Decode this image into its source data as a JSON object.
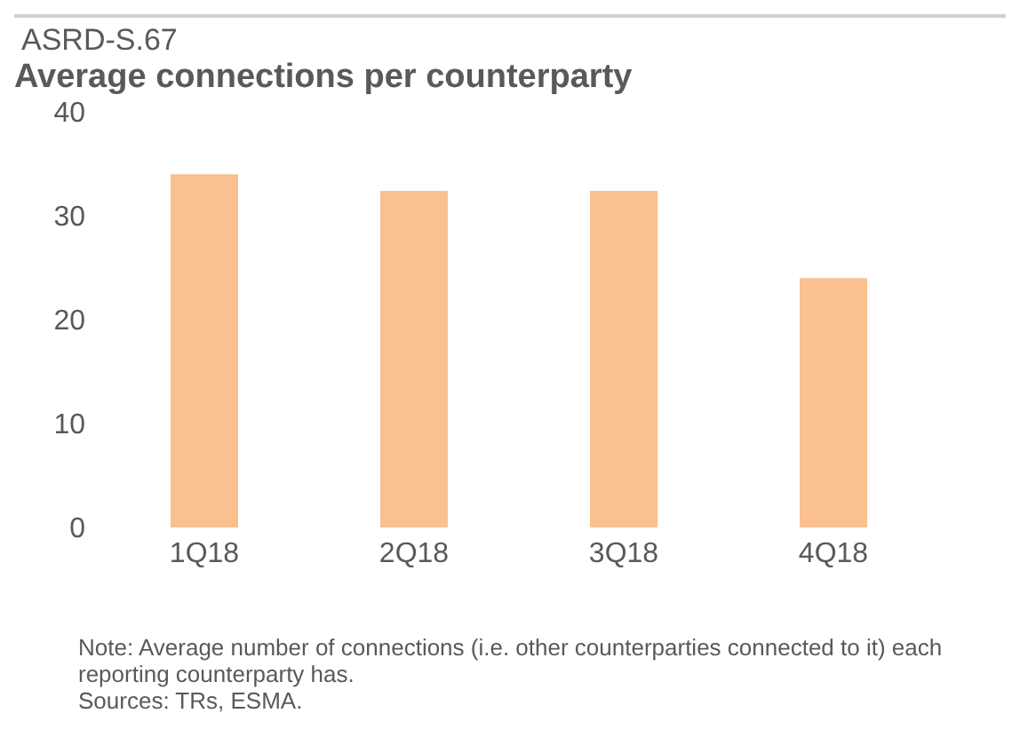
{
  "chart_data": {
    "type": "bar",
    "subtitle": "ASRD-S.67",
    "title": "Average connections per counterparty",
    "categories": [
      "1Q18",
      "2Q18",
      "3Q18",
      "4Q18"
    ],
    "values": [
      34,
      32.4,
      32.4,
      24
    ],
    "color": "#f9c090",
    "ylim": [
      0,
      40
    ],
    "yticks": [
      0,
      10,
      20,
      30,
      40
    ],
    "grid": false,
    "legend": false,
    "annotations": [
      "Note: Average number of connections (i.e. other counterparties connected to it) each reporting counterparty has.",
      "Sources: TRs, ESMA."
    ]
  }
}
